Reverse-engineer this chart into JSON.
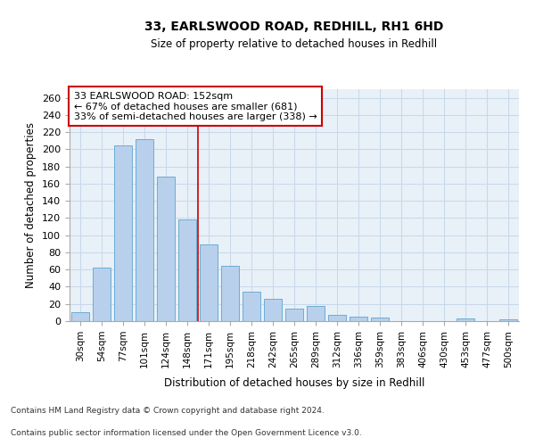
{
  "title_line1": "33, EARLSWOOD ROAD, REDHILL, RH1 6HD",
  "title_line2": "Size of property relative to detached houses in Redhill",
  "xlabel": "Distribution of detached houses by size in Redhill",
  "ylabel": "Number of detached properties",
  "bar_labels": [
    "30sqm",
    "54sqm",
    "77sqm",
    "101sqm",
    "124sqm",
    "148sqm",
    "171sqm",
    "195sqm",
    "218sqm",
    "242sqm",
    "265sqm",
    "289sqm",
    "312sqm",
    "336sqm",
    "359sqm",
    "383sqm",
    "406sqm",
    "430sqm",
    "453sqm",
    "477sqm",
    "500sqm"
  ],
  "bar_values": [
    10,
    62,
    205,
    212,
    168,
    118,
    89,
    64,
    34,
    26,
    15,
    18,
    7,
    5,
    4,
    0,
    0,
    0,
    3,
    0,
    2
  ],
  "bar_color": "#b8d0eb",
  "bar_edge_color": "#6aaed6",
  "grid_color": "#c8d8ea",
  "background_color": "#e8f0f8",
  "property_line_color": "#cc0000",
  "property_line_index": 5,
  "annotation_text": "33 EARLSWOOD ROAD: 152sqm\n← 67% of detached houses are smaller (681)\n33% of semi-detached houses are larger (338) →",
  "annotation_box_color": "#ffffff",
  "annotation_box_edge": "#cc0000",
  "ylim": [
    0,
    270
  ],
  "yticks": [
    0,
    20,
    40,
    60,
    80,
    100,
    120,
    140,
    160,
    180,
    200,
    220,
    240,
    260
  ],
  "footnote_line1": "Contains HM Land Registry data © Crown copyright and database right 2024.",
  "footnote_line2": "Contains public sector information licensed under the Open Government Licence v3.0."
}
